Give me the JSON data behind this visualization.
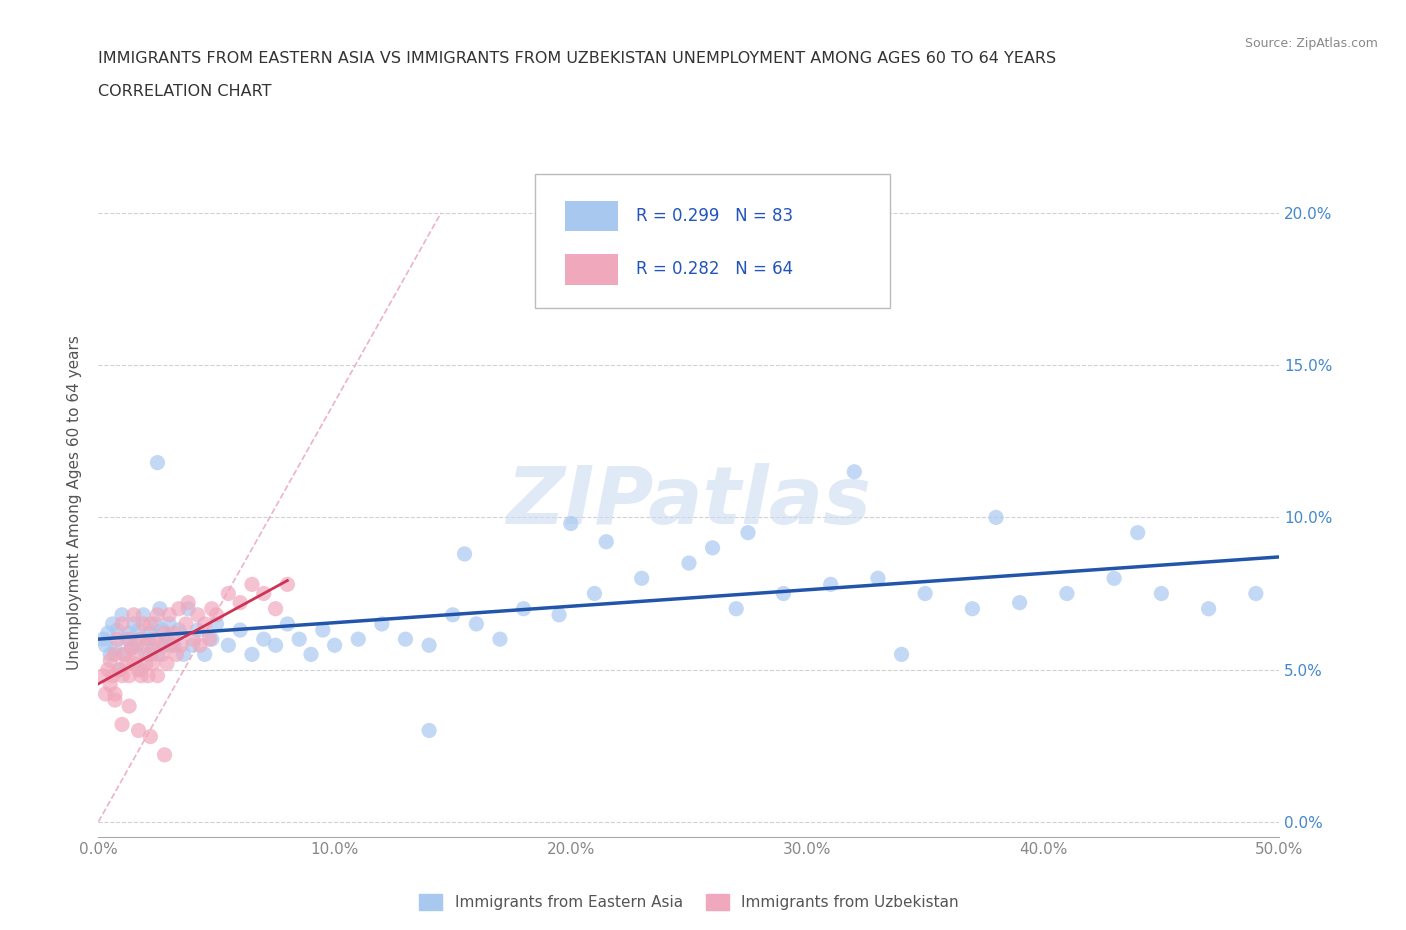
{
  "title_line1": "IMMIGRANTS FROM EASTERN ASIA VS IMMIGRANTS FROM UZBEKISTAN UNEMPLOYMENT AMONG AGES 60 TO 64 YEARS",
  "title_line2": "CORRELATION CHART",
  "source": "Source: ZipAtlas.com",
  "ylabel": "Unemployment Among Ages 60 to 64 years",
  "xlim": [
    0.0,
    0.5
  ],
  "ylim": [
    -0.005,
    0.215
  ],
  "xticks": [
    0.0,
    0.1,
    0.2,
    0.3,
    0.4,
    0.5
  ],
  "xticklabels": [
    "0.0%",
    "10.0%",
    "20.0%",
    "30.0%",
    "40.0%",
    "50.0%"
  ],
  "yticks": [
    0.0,
    0.05,
    0.1,
    0.15,
    0.2
  ],
  "yticklabels": [
    "0.0%",
    "5.0%",
    "10.0%",
    "15.0%",
    "20.0%"
  ],
  "color_eastern_asia": "#a8c8f0",
  "color_uzbekistan": "#f0a8bc",
  "trendline_color_ea": "#2255aa",
  "trendline_color_uz": "#cc3355",
  "diag_color": "#e0a0b0",
  "watermark_color": "#ccdcf0",
  "legend_label_ea": "Immigrants from Eastern Asia",
  "legend_label_uz": "Immigrants from Uzbekistan",
  "ea_x": [
    0.002,
    0.003,
    0.004,
    0.005,
    0.006,
    0.007,
    0.008,
    0.009,
    0.01,
    0.011,
    0.012,
    0.013,
    0.014,
    0.015,
    0.016,
    0.017,
    0.018,
    0.019,
    0.02,
    0.021,
    0.022,
    0.023,
    0.024,
    0.025,
    0.026,
    0.027,
    0.028,
    0.029,
    0.03,
    0.032,
    0.034,
    0.036,
    0.038,
    0.04,
    0.042,
    0.045,
    0.048,
    0.05,
    0.055,
    0.06,
    0.065,
    0.07,
    0.075,
    0.08,
    0.085,
    0.09,
    0.095,
    0.1,
    0.11,
    0.12,
    0.13,
    0.14,
    0.15,
    0.16,
    0.17,
    0.18,
    0.195,
    0.21,
    0.23,
    0.25,
    0.27,
    0.29,
    0.31,
    0.33,
    0.35,
    0.37,
    0.39,
    0.41,
    0.43,
    0.45,
    0.47,
    0.49,
    0.14,
    0.2,
    0.26,
    0.32,
    0.38,
    0.44,
    0.155,
    0.215,
    0.275,
    0.34,
    0.025
  ],
  "ea_y": [
    0.06,
    0.058,
    0.062,
    0.055,
    0.065,
    0.057,
    0.063,
    0.05,
    0.068,
    0.055,
    0.06,
    0.062,
    0.057,
    0.065,
    0.058,
    0.063,
    0.05,
    0.068,
    0.055,
    0.06,
    0.062,
    0.057,
    0.065,
    0.055,
    0.07,
    0.063,
    0.058,
    0.06,
    0.065,
    0.058,
    0.063,
    0.055,
    0.07,
    0.058,
    0.063,
    0.055,
    0.06,
    0.065,
    0.058,
    0.063,
    0.055,
    0.06,
    0.058,
    0.065,
    0.06,
    0.055,
    0.063,
    0.058,
    0.06,
    0.065,
    0.06,
    0.058,
    0.068,
    0.065,
    0.06,
    0.07,
    0.068,
    0.075,
    0.08,
    0.085,
    0.07,
    0.075,
    0.078,
    0.08,
    0.075,
    0.07,
    0.072,
    0.075,
    0.08,
    0.075,
    0.07,
    0.075,
    0.03,
    0.098,
    0.09,
    0.115,
    0.1,
    0.095,
    0.088,
    0.092,
    0.095,
    0.055,
    0.118
  ],
  "uz_x": [
    0.002,
    0.003,
    0.004,
    0.005,
    0.005,
    0.006,
    0.007,
    0.007,
    0.008,
    0.009,
    0.01,
    0.01,
    0.011,
    0.012,
    0.013,
    0.013,
    0.014,
    0.015,
    0.015,
    0.016,
    0.017,
    0.018,
    0.018,
    0.019,
    0.02,
    0.02,
    0.021,
    0.022,
    0.022,
    0.023,
    0.024,
    0.025,
    0.025,
    0.026,
    0.027,
    0.028,
    0.029,
    0.03,
    0.031,
    0.032,
    0.033,
    0.034,
    0.035,
    0.037,
    0.038,
    0.04,
    0.042,
    0.043,
    0.045,
    0.047,
    0.048,
    0.05,
    0.055,
    0.06,
    0.065,
    0.07,
    0.075,
    0.08,
    0.007,
    0.01,
    0.013,
    0.017,
    0.022,
    0.028
  ],
  "uz_y": [
    0.048,
    0.042,
    0.05,
    0.045,
    0.053,
    0.048,
    0.055,
    0.042,
    0.06,
    0.05,
    0.048,
    0.065,
    0.055,
    0.052,
    0.06,
    0.048,
    0.057,
    0.052,
    0.068,
    0.055,
    0.05,
    0.06,
    0.048,
    0.065,
    0.052,
    0.058,
    0.048,
    0.065,
    0.055,
    0.052,
    0.06,
    0.048,
    0.068,
    0.058,
    0.055,
    0.062,
    0.052,
    0.068,
    0.058,
    0.062,
    0.055,
    0.07,
    0.058,
    0.065,
    0.072,
    0.06,
    0.068,
    0.058,
    0.065,
    0.06,
    0.07,
    0.068,
    0.075,
    0.072,
    0.078,
    0.075,
    0.07,
    0.078,
    0.04,
    0.032,
    0.038,
    0.03,
    0.028,
    0.022
  ]
}
